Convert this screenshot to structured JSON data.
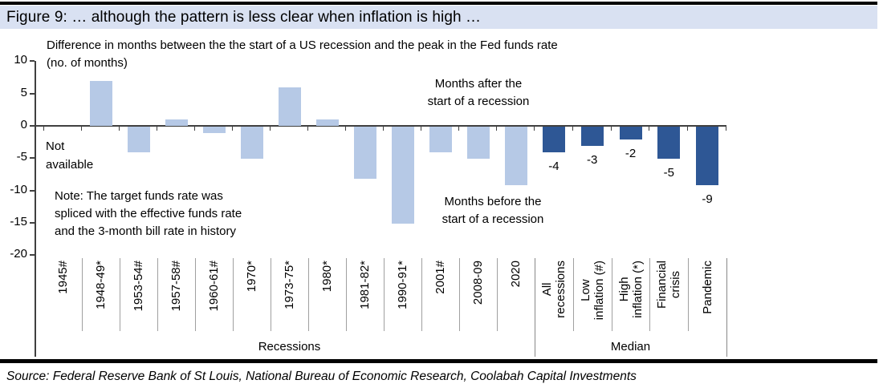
{
  "figure": {
    "title": "Figure 9: … although the pattern is less clear when inflation is high …",
    "source": "Source: Federal Reserve Bank of St Louis, National Bureau of Economic Research, Coolabah Capital Investments"
  },
  "colors": {
    "title_bar_bg": "#d9e1f2",
    "recession_bar": "#b6c9e6",
    "median_bar": "#2e5795",
    "axis_line": "#404040",
    "category_separator": "#a0a0a0",
    "group_separator": "#888888"
  },
  "chart_data": {
    "type": "bar",
    "subtitle_line1": "Difference in months between the the start of a US recession and the peak in the Fed funds rate",
    "subtitle_line2": "(no. of months)",
    "ylabel": "no. of months",
    "ylim": [
      -20,
      10
    ],
    "yticks": [
      10,
      5,
      0,
      -5,
      -10,
      -15,
      -20
    ],
    "grid": false,
    "groups": [
      {
        "label": "Recessions",
        "color": "#b6c9e6",
        "show_value_labels": false,
        "categories": [
          "1945#",
          "1948-49*",
          "1953-54#",
          "1957-58#",
          "1960-61#",
          "1970*",
          "1973-75*",
          "1980*",
          "1981-82*",
          "1990-91*",
          "2001#",
          "2008-09",
          "2020"
        ],
        "values": [
          null,
          7,
          -4,
          1,
          -1,
          -5,
          6,
          1,
          -8,
          -15,
          -4,
          -5,
          -9
        ]
      },
      {
        "label": "Median",
        "color": "#2e5795",
        "show_value_labels": true,
        "categories": [
          "All\nrecessions",
          "Low\ninflation (#)",
          "High\ninflation (*)",
          "Financial\ncrisis",
          "Pandemic"
        ],
        "values": [
          -4,
          -3,
          -2,
          -5,
          -9
        ]
      }
    ],
    "annotations": [
      {
        "id": "not-available",
        "text": "Not\navailable"
      },
      {
        "id": "months-after",
        "text": "Months after the\nstart of a recession"
      },
      {
        "id": "months-before",
        "text": "Months before the\nstart of a recession"
      },
      {
        "id": "note",
        "text": "Note: The target funds rate was\nspliced with the effective funds rate\nand the 3-month bill rate in history"
      }
    ]
  }
}
